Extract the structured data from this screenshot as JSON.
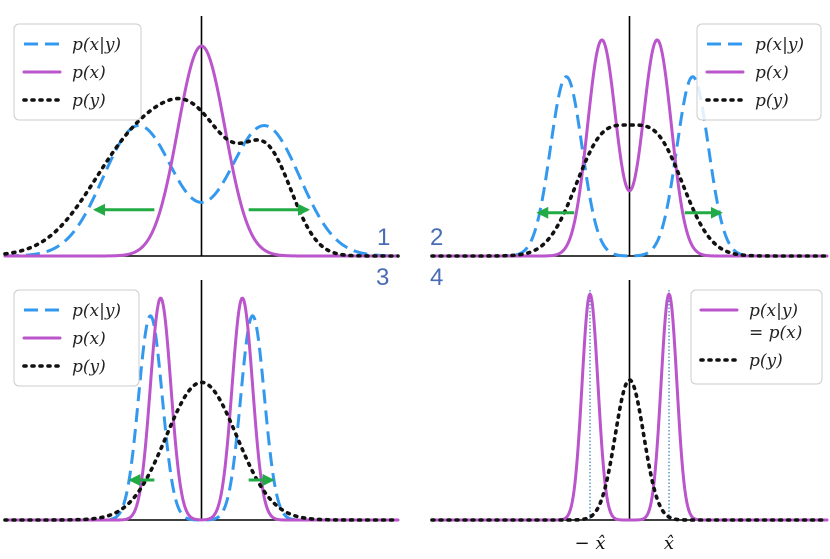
{
  "colors": {
    "pxy": "#3399ee",
    "px": "#bb55cc",
    "py": "#111111",
    "arrow": "#22aa44",
    "axis": "#000000",
    "legend_border": "#cccccc",
    "panel_number": "#4a6cb3",
    "vline": "#2c7fb8"
  },
  "chart_data": [
    {
      "type": "line",
      "panel_number": "1",
      "x_range": [
        -2.5,
        2.5
      ],
      "legend_position": "top-left",
      "legend": [
        {
          "key": "pxy",
          "label": "p(x|y)",
          "style": "dashed"
        },
        {
          "key": "px",
          "label": "p(x)",
          "style": "solid"
        },
        {
          "key": "py",
          "label": "p(y)",
          "style": "dotted"
        }
      ],
      "series": [
        {
          "key": "pxy",
          "components": [
            {
              "mu": -0.8,
              "sigma": 0.45,
              "height": 0.62
            },
            {
              "mu": 0.8,
              "sigma": 0.45,
              "height": 0.62
            }
          ]
        },
        {
          "key": "px",
          "components": [
            {
              "mu": 0.0,
              "sigma": 0.3,
              "height": 1.0
            }
          ]
        },
        {
          "key": "py",
          "components": [
            {
              "mu": -0.8,
              "sigma": 0.6,
              "height": 0.55
            },
            {
              "mu": 0.0,
              "sigma": 0.45,
              "height": 0.45
            },
            {
              "mu": 0.85,
              "sigma": 0.32,
              "height": 0.44
            }
          ]
        }
      ],
      "arrows": [
        {
          "x_from": -0.6,
          "x_to": -1.35,
          "y": 0.22
        },
        {
          "x_from": 0.6,
          "x_to": 1.35,
          "y": 0.22
        }
      ]
    },
    {
      "type": "line",
      "panel_number": "2",
      "x_range": [
        -2.5,
        2.5
      ],
      "legend_position": "top-right",
      "legend": [
        {
          "key": "pxy",
          "label": "p(x|y)",
          "style": "dashed"
        },
        {
          "key": "px",
          "label": "p(x)",
          "style": "solid"
        },
        {
          "key": "py",
          "label": "p(y)",
          "style": "dotted"
        }
      ],
      "series": [
        {
          "key": "pxy",
          "components": [
            {
              "mu": -0.8,
              "sigma": 0.2,
              "height": 0.83
            },
            {
              "mu": 0.8,
              "sigma": 0.2,
              "height": 0.83
            }
          ]
        },
        {
          "key": "px",
          "components": [
            {
              "mu": -0.35,
              "sigma": 0.18,
              "height": 1.0
            },
            {
              "mu": 0.35,
              "sigma": 0.18,
              "height": 1.0
            }
          ]
        },
        {
          "key": "py",
          "components": [
            {
              "mu": -0.35,
              "sigma": 0.35,
              "height": 0.5
            },
            {
              "mu": 0.35,
              "sigma": 0.35,
              "height": 0.5
            }
          ]
        }
      ],
      "arrows": [
        {
          "x_from": -0.7,
          "x_to": -1.15,
          "y": 0.2
        },
        {
          "x_from": 0.7,
          "x_to": 1.15,
          "y": 0.2
        }
      ]
    },
    {
      "type": "line",
      "panel_number": "3",
      "x_range": [
        -2.5,
        2.5
      ],
      "legend_position": "top-left",
      "legend": [
        {
          "key": "pxy",
          "label": "p(x|y)",
          "style": "dashed"
        },
        {
          "key": "px",
          "label": "p(x)",
          "style": "solid"
        },
        {
          "key": "py",
          "label": "p(y)",
          "style": "dotted"
        }
      ],
      "series": [
        {
          "key": "pxy",
          "components": [
            {
              "mu": -0.65,
              "sigma": 0.15,
              "height": 0.92
            },
            {
              "mu": 0.65,
              "sigma": 0.15,
              "height": 0.92
            }
          ]
        },
        {
          "key": "px",
          "components": [
            {
              "mu": -0.52,
              "sigma": 0.13,
              "height": 1.0
            },
            {
              "mu": 0.52,
              "sigma": 0.13,
              "height": 1.0
            }
          ]
        },
        {
          "key": "py",
          "components": [
            {
              "mu": 0.0,
              "sigma": 0.45,
              "height": 0.62
            }
          ]
        }
      ],
      "arrows": [
        {
          "x_from": -0.6,
          "x_to": -0.9,
          "y": 0.18
        },
        {
          "x_from": 0.6,
          "x_to": 0.9,
          "y": 0.18
        }
      ]
    },
    {
      "type": "line",
      "panel_number": "4",
      "x_range": [
        -2.5,
        2.5
      ],
      "legend_position": "top-right",
      "legend": [
        {
          "key": "px",
          "label": "p(x|y)",
          "label2": "= p(x)",
          "style": "solid"
        },
        {
          "key": "py",
          "label": "p(y)",
          "style": "dotted"
        }
      ],
      "series": [
        {
          "key": "px",
          "components": [
            {
              "mu": -0.5,
              "sigma": 0.1,
              "height": 1.0
            },
            {
              "mu": 0.5,
              "sigma": 0.1,
              "height": 1.0
            }
          ]
        },
        {
          "key": "py",
          "components": [
            {
              "mu": 0.0,
              "sigma": 0.18,
              "height": 0.62
            }
          ]
        }
      ],
      "vlines": [
        -0.5,
        0.5
      ],
      "xtick_labels": [
        {
          "x": -0.5,
          "label": "− x̂"
        },
        {
          "x": 0.5,
          "label": "x̂"
        }
      ],
      "arrows": []
    }
  ]
}
